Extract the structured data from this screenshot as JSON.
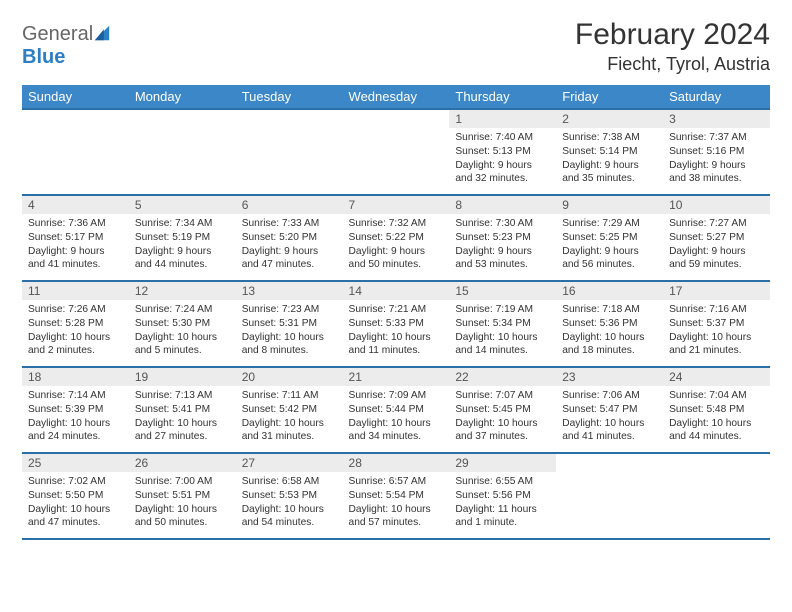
{
  "logo": {
    "word1": "General",
    "word2": "Blue"
  },
  "title": "February 2024",
  "location": "Fiecht, Tyrol, Austria",
  "colors": {
    "header_bg": "#3b87c8",
    "header_border": "#2b6fa8",
    "daynum_bg": "#ececec",
    "text": "#333333",
    "logo_blue": "#2b7fc4"
  },
  "fonts": {
    "title_size": 30,
    "location_size": 18,
    "th_size": 13,
    "daynum_size": 12,
    "body_size": 10.2
  },
  "day_labels": [
    "Sunday",
    "Monday",
    "Tuesday",
    "Wednesday",
    "Thursday",
    "Friday",
    "Saturday"
  ],
  "weeks": [
    [
      null,
      null,
      null,
      null,
      {
        "n": "1",
        "sr": "Sunrise: 7:40 AM",
        "ss": "Sunset: 5:13 PM",
        "dl": "Daylight: 9 hours and 32 minutes."
      },
      {
        "n": "2",
        "sr": "Sunrise: 7:38 AM",
        "ss": "Sunset: 5:14 PM",
        "dl": "Daylight: 9 hours and 35 minutes."
      },
      {
        "n": "3",
        "sr": "Sunrise: 7:37 AM",
        "ss": "Sunset: 5:16 PM",
        "dl": "Daylight: 9 hours and 38 minutes."
      }
    ],
    [
      {
        "n": "4",
        "sr": "Sunrise: 7:36 AM",
        "ss": "Sunset: 5:17 PM",
        "dl": "Daylight: 9 hours and 41 minutes."
      },
      {
        "n": "5",
        "sr": "Sunrise: 7:34 AM",
        "ss": "Sunset: 5:19 PM",
        "dl": "Daylight: 9 hours and 44 minutes."
      },
      {
        "n": "6",
        "sr": "Sunrise: 7:33 AM",
        "ss": "Sunset: 5:20 PM",
        "dl": "Daylight: 9 hours and 47 minutes."
      },
      {
        "n": "7",
        "sr": "Sunrise: 7:32 AM",
        "ss": "Sunset: 5:22 PM",
        "dl": "Daylight: 9 hours and 50 minutes."
      },
      {
        "n": "8",
        "sr": "Sunrise: 7:30 AM",
        "ss": "Sunset: 5:23 PM",
        "dl": "Daylight: 9 hours and 53 minutes."
      },
      {
        "n": "9",
        "sr": "Sunrise: 7:29 AM",
        "ss": "Sunset: 5:25 PM",
        "dl": "Daylight: 9 hours and 56 minutes."
      },
      {
        "n": "10",
        "sr": "Sunrise: 7:27 AM",
        "ss": "Sunset: 5:27 PM",
        "dl": "Daylight: 9 hours and 59 minutes."
      }
    ],
    [
      {
        "n": "11",
        "sr": "Sunrise: 7:26 AM",
        "ss": "Sunset: 5:28 PM",
        "dl": "Daylight: 10 hours and 2 minutes."
      },
      {
        "n": "12",
        "sr": "Sunrise: 7:24 AM",
        "ss": "Sunset: 5:30 PM",
        "dl": "Daylight: 10 hours and 5 minutes."
      },
      {
        "n": "13",
        "sr": "Sunrise: 7:23 AM",
        "ss": "Sunset: 5:31 PM",
        "dl": "Daylight: 10 hours and 8 minutes."
      },
      {
        "n": "14",
        "sr": "Sunrise: 7:21 AM",
        "ss": "Sunset: 5:33 PM",
        "dl": "Daylight: 10 hours and 11 minutes."
      },
      {
        "n": "15",
        "sr": "Sunrise: 7:19 AM",
        "ss": "Sunset: 5:34 PM",
        "dl": "Daylight: 10 hours and 14 minutes."
      },
      {
        "n": "16",
        "sr": "Sunrise: 7:18 AM",
        "ss": "Sunset: 5:36 PM",
        "dl": "Daylight: 10 hours and 18 minutes."
      },
      {
        "n": "17",
        "sr": "Sunrise: 7:16 AM",
        "ss": "Sunset: 5:37 PM",
        "dl": "Daylight: 10 hours and 21 minutes."
      }
    ],
    [
      {
        "n": "18",
        "sr": "Sunrise: 7:14 AM",
        "ss": "Sunset: 5:39 PM",
        "dl": "Daylight: 10 hours and 24 minutes."
      },
      {
        "n": "19",
        "sr": "Sunrise: 7:13 AM",
        "ss": "Sunset: 5:41 PM",
        "dl": "Daylight: 10 hours and 27 minutes."
      },
      {
        "n": "20",
        "sr": "Sunrise: 7:11 AM",
        "ss": "Sunset: 5:42 PM",
        "dl": "Daylight: 10 hours and 31 minutes."
      },
      {
        "n": "21",
        "sr": "Sunrise: 7:09 AM",
        "ss": "Sunset: 5:44 PM",
        "dl": "Daylight: 10 hours and 34 minutes."
      },
      {
        "n": "22",
        "sr": "Sunrise: 7:07 AM",
        "ss": "Sunset: 5:45 PM",
        "dl": "Daylight: 10 hours and 37 minutes."
      },
      {
        "n": "23",
        "sr": "Sunrise: 7:06 AM",
        "ss": "Sunset: 5:47 PM",
        "dl": "Daylight: 10 hours and 41 minutes."
      },
      {
        "n": "24",
        "sr": "Sunrise: 7:04 AM",
        "ss": "Sunset: 5:48 PM",
        "dl": "Daylight: 10 hours and 44 minutes."
      }
    ],
    [
      {
        "n": "25",
        "sr": "Sunrise: 7:02 AM",
        "ss": "Sunset: 5:50 PM",
        "dl": "Daylight: 10 hours and 47 minutes."
      },
      {
        "n": "26",
        "sr": "Sunrise: 7:00 AM",
        "ss": "Sunset: 5:51 PM",
        "dl": "Daylight: 10 hours and 50 minutes."
      },
      {
        "n": "27",
        "sr": "Sunrise: 6:58 AM",
        "ss": "Sunset: 5:53 PM",
        "dl": "Daylight: 10 hours and 54 minutes."
      },
      {
        "n": "28",
        "sr": "Sunrise: 6:57 AM",
        "ss": "Sunset: 5:54 PM",
        "dl": "Daylight: 10 hours and 57 minutes."
      },
      {
        "n": "29",
        "sr": "Sunrise: 6:55 AM",
        "ss": "Sunset: 5:56 PM",
        "dl": "Daylight: 11 hours and 1 minute."
      },
      null,
      null
    ]
  ]
}
